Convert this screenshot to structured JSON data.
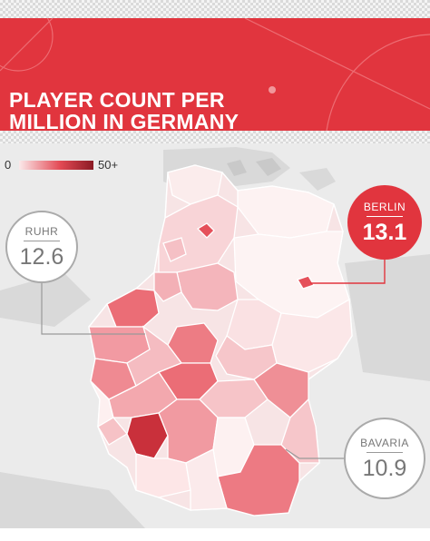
{
  "title": {
    "line1": "PLAYER COUNT PER",
    "line2": "MILLION IN GERMANY"
  },
  "legend": {
    "min_label": "0",
    "max_label": "50+",
    "color_low": "#fbe9ea",
    "color_mid": "#e34a55",
    "color_high": "#8b1a24"
  },
  "callouts": {
    "ruhr": {
      "label": "RUHR",
      "value": "12.6"
    },
    "berlin": {
      "label": "BERLIN",
      "value": "13.1"
    },
    "bavaria": {
      "label": "BAVARIA",
      "value": "10.9"
    }
  },
  "colors": {
    "brand_red": "#e1353e",
    "background": "#efefef"
  }
}
